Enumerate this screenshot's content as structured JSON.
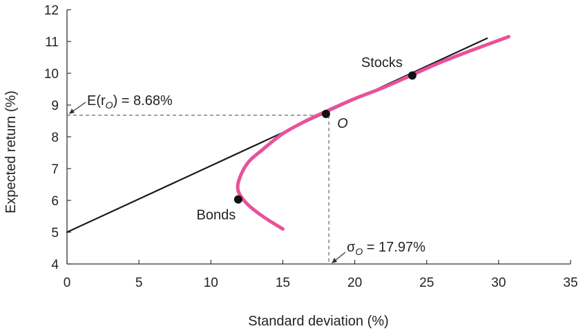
{
  "chart_data": {
    "type": "line",
    "title": "",
    "xlabel": "Standard deviation (%)",
    "ylabel": "Expected return (%)",
    "xlim": [
      0,
      35
    ],
    "ylim": [
      4,
      12
    ],
    "x_ticks": [
      0,
      5,
      10,
      15,
      20,
      25,
      30,
      35
    ],
    "y_ticks": [
      4,
      5,
      6,
      7,
      8,
      9,
      10,
      11,
      12
    ],
    "grid": false,
    "legend": "none",
    "series": [
      {
        "kind": "capital-allocation-line",
        "color": "#1a1a1a",
        "points": [
          [
            0,
            5.0
          ],
          [
            29.2,
            11.1
          ]
        ]
      },
      {
        "kind": "opportunity-set",
        "color": "#e8529a",
        "points": [
          [
            15.0,
            5.1
          ],
          [
            13.6,
            5.5
          ],
          [
            12.5,
            5.9
          ],
          [
            11.9,
            6.3
          ],
          [
            12.0,
            6.7
          ],
          [
            12.6,
            7.2
          ],
          [
            13.6,
            7.6
          ],
          [
            15.0,
            8.1
          ],
          [
            16.6,
            8.5
          ],
          [
            18.0,
            8.8
          ],
          [
            20.0,
            9.2
          ],
          [
            22.0,
            9.55
          ],
          [
            24.0,
            9.95
          ],
          [
            26.0,
            10.35
          ],
          [
            28.0,
            10.7
          ],
          [
            30.7,
            11.15
          ]
        ]
      }
    ],
    "points": [
      {
        "name": "Bonds",
        "x": 11.9,
        "y": 6.03,
        "label_position": "below-left"
      },
      {
        "name": "O",
        "x": 18.0,
        "y": 8.72,
        "label_position": "below-right",
        "italic": true
      },
      {
        "name": "Stocks",
        "x": 24.0,
        "y": 9.93,
        "label_position": "above-left"
      }
    ],
    "annotations": {
      "e_ro": {
        "prefix": "E(r",
        "subscript": "O",
        "suffix": ") = 8.68%",
        "x": 0,
        "y": 8.68
      },
      "sigma_o": {
        "prefix": "σ",
        "subscript": "O",
        "suffix": " = 17.97%",
        "x": 18.2,
        "y": 4
      }
    }
  }
}
